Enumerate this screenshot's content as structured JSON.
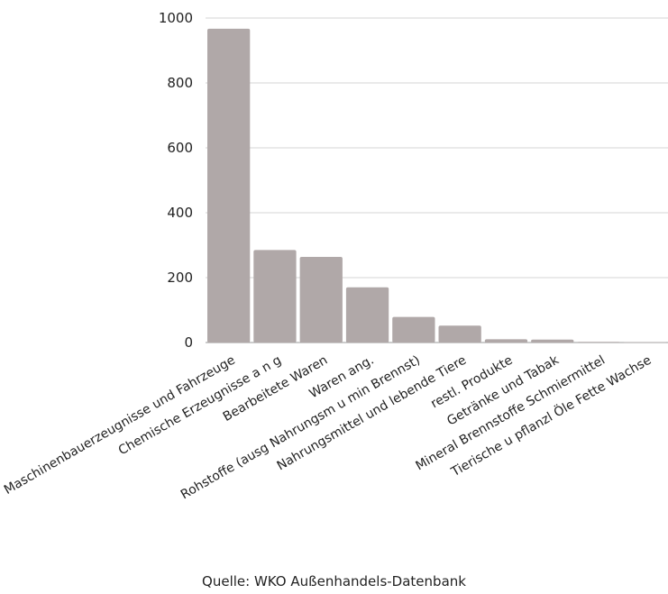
{
  "chart_data": {
    "type": "bar",
    "categories": [
      "Maschinenbauerzeugnisse und Fahrzeuge",
      "Chemische Erzeugnisse a n g",
      "Bearbeitete Waren",
      "Waren ang.",
      "Rohstoffe (ausg Nahrungsm u min Brennst)",
      "Nahrungsmittel und lebende Tiere",
      "restl. Produkte",
      "Getränke und Tabak",
      "Mineral Brennstoffe Schmiermittel",
      "Tierische u pflanzl Öle Fette Wachse"
    ],
    "values": [
      967,
      285,
      264,
      170,
      79,
      52,
      10,
      9,
      2,
      1
    ],
    "yticks": [
      "0",
      "200",
      "400",
      "600",
      "800",
      "1000"
    ],
    "ylim": [
      0,
      1000
    ],
    "grid": true,
    "bar_color": "#b0a8a8",
    "grid_color": "#d4d4d4"
  },
  "source": "Quelle: WKO Außenhandels-Datenbank"
}
